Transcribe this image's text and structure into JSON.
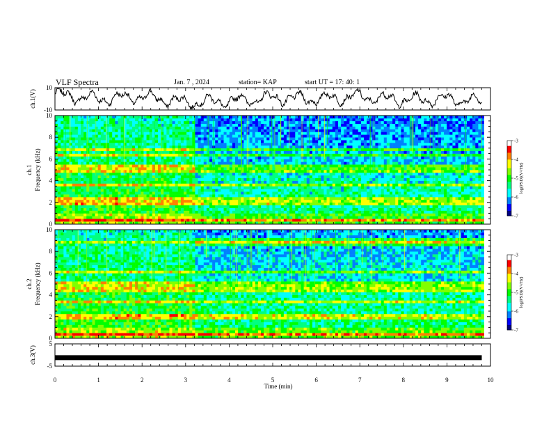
{
  "header": {
    "title": "VLF Spectra",
    "date": "Jan. 7 , 2024",
    "station": "station= KAP",
    "start": "start  UT  =   17: 40: 1"
  },
  "chart_data": [
    {
      "type": "line",
      "panel": "ch1-waveform",
      "ylabel": "ch.1(V)",
      "ylim": [
        -10,
        10
      ],
      "yticks": [
        "10",
        "-10"
      ],
      "xlim": [
        0,
        10
      ],
      "description_of_trace": "noisy oscillating waveform between about -10 and +10 V",
      "approx_envelope": {
        "x": [
          0,
          1,
          2,
          3,
          4,
          5,
          6,
          7,
          8,
          9,
          9.8
        ],
        "y": [
          4,
          0,
          2,
          -3,
          -2,
          1,
          0,
          2,
          -1,
          0,
          -2
        ]
      }
    },
    {
      "type": "heatmap",
      "panel": "ch1-spectrogram",
      "ylabel": "ch.1 Frequency (kHz)",
      "ylim": [
        0,
        10
      ],
      "yticks": [
        "0",
        "2",
        "4",
        "6",
        "8",
        "10"
      ],
      "xlim": [
        0,
        10
      ],
      "colorbar": {
        "label": "log(PSD)(V²/Hz)",
        "range": [
          -7,
          -3
        ],
        "ticks": [
          "-3",
          "-4",
          "-5",
          "-6",
          "-7"
        ]
      }
    },
    {
      "type": "heatmap",
      "panel": "ch2-spectrogram",
      "ylabel": "ch.2 Frequency (kHz)",
      "ylim": [
        0,
        10
      ],
      "yticks": [
        "0",
        "2",
        "4",
        "6",
        "8",
        "10"
      ],
      "xlim": [
        0,
        10
      ],
      "colorbar": {
        "label": "log(PSD)(V²/Hz)",
        "range": [
          -7,
          -3
        ],
        "ticks": [
          "-3",
          "-4",
          "-5",
          "-6",
          "-7"
        ]
      }
    },
    {
      "type": "line",
      "panel": "ch3-waveform",
      "ylabel": "ch.3(V)",
      "ylim": [
        -5,
        5
      ],
      "yticks": [
        "5",
        "-5"
      ],
      "xlim": [
        0,
        10
      ],
      "constant_value": -1.2
    }
  ],
  "xaxis": {
    "label": "Time  (min)",
    "ticks": [
      "0",
      "1",
      "2",
      "3",
      "4",
      "5",
      "6",
      "7",
      "8",
      "9",
      "10"
    ]
  },
  "colors": {
    "colormap": [
      "#000080",
      "#0000ff",
      "#0080ff",
      "#00ffff",
      "#00ff80",
      "#00ff00",
      "#80ff00",
      "#ffff00",
      "#ff8000",
      "#ff0000",
      "#ffffff"
    ]
  }
}
